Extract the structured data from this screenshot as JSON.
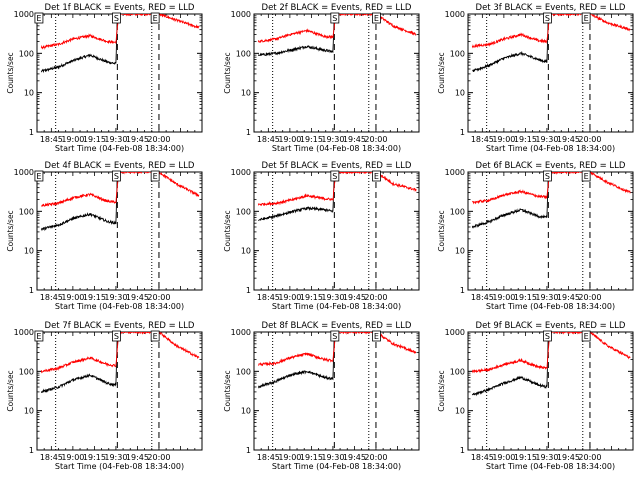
{
  "chart_data": [
    {
      "type": "line",
      "title": "Det 1f BLACK = Events, RED = LLD",
      "xlabel": "Start Time (04-Feb-08 18:34:00)",
      "ylabel": "Counts/sec",
      "yscale": "log",
      "ylim": [
        1,
        1000
      ],
      "xlim": [
        "18:35",
        "20:30"
      ],
      "x_ticks": [
        "18:45",
        "19:00",
        "19:15",
        "19:30",
        "19:45",
        "20:00"
      ],
      "y_ticks": [
        "1",
        "10",
        "100",
        "1000"
      ],
      "markers": [
        {
          "label": "E",
          "x": "18:36"
        },
        {
          "label": "S",
          "x": "19:30"
        },
        {
          "label": "E",
          "x": "19:57"
        }
      ],
      "dotted_lines": [
        "18:48",
        "19:55"
      ],
      "dashed_lines": [
        "19:31",
        "20:00"
      ],
      "series": [
        {
          "color": "#000000",
          "x": [
            "18:38",
            "18:50",
            "19:00",
            "19:12",
            "19:24",
            "19:30",
            "19:31"
          ],
          "y": [
            35,
            45,
            65,
            90,
            60,
            55,
            1000
          ]
        },
        {
          "color": "#ff0000",
          "x": [
            "18:38",
            "18:50",
            "19:00",
            "19:12",
            "19:24",
            "19:30",
            "19:32",
            "20:00",
            "20:12",
            "20:28"
          ],
          "y": [
            140,
            170,
            230,
            280,
            200,
            190,
            1000,
            1000,
            700,
            450
          ]
        }
      ]
    },
    {
      "type": "line",
      "title": "Det 2f BLACK = Events, RED = LLD",
      "xlabel": "Start Time (04-Feb-08 18:34:00)",
      "ylabel": "Counts/sec",
      "yscale": "log",
      "ylim": [
        1,
        1000
      ],
      "xlim": [
        "18:35",
        "20:30"
      ],
      "x_ticks": [
        "18:45",
        "19:00",
        "19:15",
        "19:30",
        "19:45",
        "20:00"
      ],
      "y_ticks": [
        "1",
        "10",
        "100",
        "1000"
      ],
      "markers": [
        {
          "label": "S",
          "x": "19:31"
        },
        {
          "label": "E",
          "x": "20:00"
        }
      ],
      "dotted_lines": [
        "18:48",
        "19:55"
      ],
      "dashed_lines": [
        "19:31",
        "20:00"
      ],
      "series": [
        {
          "color": "#000000",
          "x": [
            "18:38",
            "18:50",
            "19:00",
            "19:12",
            "19:24",
            "19:30",
            "19:31"
          ],
          "y": [
            90,
            100,
            120,
            150,
            120,
            110,
            1000
          ]
        },
        {
          "color": "#ff0000",
          "x": [
            "18:38",
            "18:50",
            "19:00",
            "19:12",
            "19:24",
            "19:30",
            "19:32",
            "20:00",
            "20:12",
            "20:28"
          ],
          "y": [
            200,
            230,
            300,
            380,
            270,
            260,
            1000,
            1000,
            500,
            300
          ]
        }
      ]
    },
    {
      "type": "line",
      "title": "Det 3f BLACK = Events, RED = LLD",
      "xlabel": "Start Time (04-Feb-08 18:34:00)",
      "ylabel": "Counts/sec",
      "yscale": "log",
      "ylim": [
        1,
        1000
      ],
      "xlim": [
        "18:35",
        "20:30"
      ],
      "x_ticks": [
        "18:45",
        "19:00",
        "19:15",
        "19:30",
        "19:45",
        "20:00"
      ],
      "y_ticks": [
        "1",
        "10",
        "100",
        "1000"
      ],
      "markers": [
        {
          "label": "S",
          "x": "19:30"
        },
        {
          "label": "E",
          "x": "19:57"
        }
      ],
      "dotted_lines": [
        "18:48",
        "19:55"
      ],
      "dashed_lines": [
        "19:31",
        "20:00"
      ],
      "series": [
        {
          "color": "#000000",
          "x": [
            "18:38",
            "18:50",
            "19:00",
            "19:12",
            "19:24",
            "19:30",
            "19:31"
          ],
          "y": [
            35,
            50,
            75,
            100,
            70,
            60,
            1000
          ]
        },
        {
          "color": "#ff0000",
          "x": [
            "18:38",
            "18:50",
            "19:00",
            "19:12",
            "19:24",
            "19:30",
            "19:32",
            "20:00",
            "20:12",
            "20:28"
          ],
          "y": [
            150,
            170,
            230,
            300,
            210,
            200,
            1000,
            1000,
            600,
            400
          ]
        }
      ]
    },
    {
      "type": "line",
      "title": "Det 4f BLACK = Events, RED = LLD",
      "xlabel": "Start Time (04-Feb-08 18:34:00)",
      "ylabel": "Counts/sec",
      "yscale": "log",
      "ylim": [
        1,
        1000
      ],
      "xlim": [
        "18:35",
        "20:30"
      ],
      "x_ticks": [
        "18:45",
        "19:00",
        "19:15",
        "19:30",
        "19:45",
        "20:00"
      ],
      "y_ticks": [
        "1",
        "10",
        "100",
        "1000"
      ],
      "markers": [
        {
          "label": "E",
          "x": "18:36"
        },
        {
          "label": "S",
          "x": "19:30"
        },
        {
          "label": "E",
          "x": "19:57"
        }
      ],
      "dotted_lines": [
        "18:48",
        "19:55"
      ],
      "dashed_lines": [
        "19:31",
        "20:00"
      ],
      "series": [
        {
          "color": "#000000",
          "x": [
            "18:38",
            "18:50",
            "19:00",
            "19:12",
            "19:24",
            "19:30",
            "19:31"
          ],
          "y": [
            35,
            45,
            65,
            85,
            55,
            50,
            1000
          ]
        },
        {
          "color": "#ff0000",
          "x": [
            "18:38",
            "18:50",
            "19:00",
            "19:12",
            "19:24",
            "19:30",
            "19:32",
            "20:00",
            "20:12",
            "20:28"
          ],
          "y": [
            140,
            160,
            220,
            270,
            180,
            170,
            1000,
            1000,
            500,
            250
          ]
        }
      ]
    },
    {
      "type": "line",
      "title": "Det 5f BLACK = Events, RED = LLD",
      "xlabel": "Start Time (04-Feb-08 18:34:00)",
      "ylabel": "Counts/sec",
      "yscale": "log",
      "ylim": [
        1,
        1000
      ],
      "xlim": [
        "18:35",
        "20:30"
      ],
      "x_ticks": [
        "18:45",
        "19:00",
        "19:15",
        "19:30",
        "19:45",
        "20:00"
      ],
      "y_ticks": [
        "1",
        "10",
        "100",
        "1000"
      ],
      "markers": [
        {
          "label": "S",
          "x": "19:31"
        },
        {
          "label": "E",
          "x": "20:00"
        }
      ],
      "dotted_lines": [
        "18:48",
        "19:55"
      ],
      "dashed_lines": [
        "19:31",
        "20:00"
      ],
      "series": [
        {
          "color": "#000000",
          "x": [
            "18:38",
            "18:50",
            "19:00",
            "19:12",
            "19:24",
            "19:30",
            "19:31"
          ],
          "y": [
            60,
            75,
            95,
            120,
            110,
            100,
            1000
          ]
        },
        {
          "color": "#ff0000",
          "x": [
            "18:38",
            "18:50",
            "19:00",
            "19:12",
            "19:24",
            "19:30",
            "19:32",
            "20:00",
            "20:12",
            "20:28"
          ],
          "y": [
            150,
            160,
            190,
            250,
            210,
            200,
            1000,
            1000,
            500,
            350
          ]
        }
      ]
    },
    {
      "type": "line",
      "title": "Det 6f BLACK = Events, RED = LLD",
      "xlabel": "Start Time (04-Feb-08 18:34:00)",
      "ylabel": "Counts/sec",
      "yscale": "log",
      "ylim": [
        1,
        1000
      ],
      "xlim": [
        "18:35",
        "20:30"
      ],
      "x_ticks": [
        "18:45",
        "19:00",
        "19:15",
        "19:30",
        "19:45",
        "20:00"
      ],
      "y_ticks": [
        "1",
        "10",
        "100",
        "1000"
      ],
      "markers": [
        {
          "label": "S",
          "x": "19:30"
        },
        {
          "label": "E",
          "x": "19:57"
        }
      ],
      "dotted_lines": [
        "18:48",
        "19:55"
      ],
      "dashed_lines": [
        "19:31",
        "20:00"
      ],
      "series": [
        {
          "color": "#000000",
          "x": [
            "18:38",
            "18:50",
            "19:00",
            "19:12",
            "19:24",
            "19:30",
            "19:31"
          ],
          "y": [
            40,
            55,
            80,
            110,
            75,
            70,
            1000
          ]
        },
        {
          "color": "#ff0000",
          "x": [
            "18:38",
            "18:50",
            "19:00",
            "19:12",
            "19:24",
            "19:30",
            "19:32",
            "20:00",
            "20:12",
            "20:28"
          ],
          "y": [
            170,
            190,
            260,
            320,
            240,
            230,
            1000,
            1000,
            550,
            300
          ]
        }
      ]
    },
    {
      "type": "line",
      "title": "Det 7f BLACK = Events, RED = LLD",
      "xlabel": "Start Time (04-Feb-08 18:34:00)",
      "ylabel": "Counts/sec",
      "yscale": "log",
      "ylim": [
        1,
        1000
      ],
      "xlim": [
        "18:35",
        "20:30"
      ],
      "x_ticks": [
        "18:45",
        "19:00",
        "19:15",
        "19:30",
        "19:45",
        "20:00"
      ],
      "y_ticks": [
        "1",
        "10",
        "100",
        "1000"
      ],
      "markers": [
        {
          "label": "E",
          "x": "18:36"
        },
        {
          "label": "S",
          "x": "19:30"
        },
        {
          "label": "E",
          "x": "19:57"
        }
      ],
      "dotted_lines": [
        "18:48",
        "19:55"
      ],
      "dashed_lines": [
        "19:31",
        "20:00"
      ],
      "series": [
        {
          "color": "#000000",
          "x": [
            "18:38",
            "18:50",
            "19:00",
            "19:12",
            "19:24",
            "19:30",
            "19:31"
          ],
          "y": [
            30,
            40,
            60,
            80,
            50,
            45,
            1000
          ]
        },
        {
          "color": "#ff0000",
          "x": [
            "18:38",
            "18:50",
            "19:00",
            "19:12",
            "19:24",
            "19:30",
            "19:32",
            "20:00",
            "20:12",
            "20:28"
          ],
          "y": [
            100,
            120,
            170,
            220,
            150,
            140,
            1000,
            1000,
            450,
            220
          ]
        }
      ]
    },
    {
      "type": "line",
      "title": "Det 8f BLACK = Events, RED = LLD",
      "xlabel": "Start Time (04-Feb-08 18:34:00)",
      "ylabel": "Counts/sec",
      "yscale": "log",
      "ylim": [
        1,
        1000
      ],
      "xlim": [
        "18:35",
        "20:30"
      ],
      "x_ticks": [
        "18:45",
        "19:00",
        "19:15",
        "19:30",
        "19:45",
        "20:00"
      ],
      "y_ticks": [
        "1",
        "10",
        "100",
        "1000"
      ],
      "markers": [
        {
          "label": "S",
          "x": "19:31"
        },
        {
          "label": "E",
          "x": "20:00"
        }
      ],
      "dotted_lines": [
        "18:48",
        "19:55"
      ],
      "dashed_lines": [
        "19:31",
        "20:00"
      ],
      "series": [
        {
          "color": "#000000",
          "x": [
            "18:38",
            "18:50",
            "19:00",
            "19:12",
            "19:24",
            "19:30",
            "19:31"
          ],
          "y": [
            40,
            55,
            80,
            100,
            70,
            65,
            1000
          ]
        },
        {
          "color": "#ff0000",
          "x": [
            "18:38",
            "18:50",
            "19:00",
            "19:12",
            "19:24",
            "19:30",
            "19:32",
            "20:00",
            "20:12",
            "20:28"
          ],
          "y": [
            150,
            160,
            220,
            280,
            200,
            190,
            1000,
            1000,
            500,
            300
          ]
        }
      ]
    },
    {
      "type": "line",
      "title": "Det 9f BLACK = Events, RED = LLD",
      "xlabel": "Start Time (04-Feb-08 18:34:00)",
      "ylabel": "Counts/sec",
      "yscale": "log",
      "ylim": [
        1,
        1000
      ],
      "xlim": [
        "18:35",
        "20:30"
      ],
      "x_ticks": [
        "18:45",
        "19:00",
        "19:15",
        "19:30",
        "19:45",
        "20:00"
      ],
      "y_ticks": [
        "1",
        "10",
        "100",
        "1000"
      ],
      "markers": [
        {
          "label": "S",
          "x": "19:30"
        },
        {
          "label": "E",
          "x": "19:57"
        }
      ],
      "dotted_lines": [
        "18:48",
        "19:55"
      ],
      "dashed_lines": [
        "19:31",
        "20:00"
      ],
      "series": [
        {
          "color": "#000000",
          "x": [
            "18:38",
            "18:50",
            "19:00",
            "19:12",
            "19:24",
            "19:30",
            "19:31"
          ],
          "y": [
            25,
            35,
            50,
            70,
            45,
            40,
            1000
          ]
        },
        {
          "color": "#ff0000",
          "x": [
            "18:38",
            "18:50",
            "19:00",
            "19:12",
            "19:24",
            "19:30",
            "19:32",
            "20:00",
            "20:12",
            "20:28"
          ],
          "y": [
            100,
            110,
            150,
            190,
            130,
            120,
            1000,
            1000,
            450,
            220
          ]
        }
      ]
    }
  ]
}
